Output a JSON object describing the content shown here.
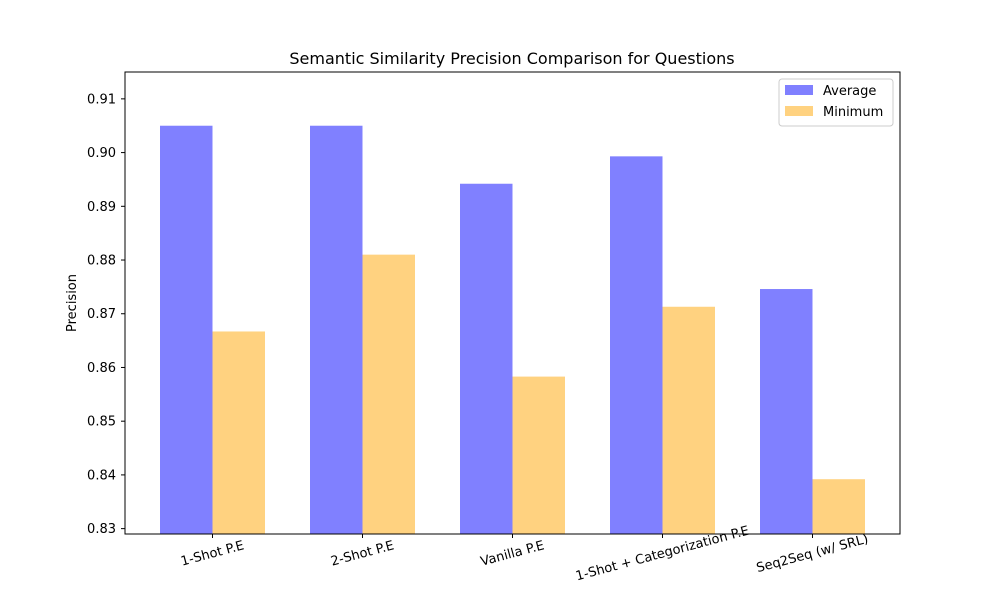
{
  "chart_data": {
    "type": "bar",
    "title": "Semantic Similarity Precision Comparison for Questions",
    "xlabel": "",
    "ylabel": "Precision",
    "ylim": [
      0.829,
      0.915
    ],
    "yticks": [
      "0.83",
      "0.84",
      "0.85",
      "0.86",
      "0.87",
      "0.88",
      "0.89",
      "0.90",
      "0.91"
    ],
    "categories": [
      "1-Shot P.E",
      "2-Shot P.E",
      "Vanilla P.E",
      "1-Shot + Categorization P.E",
      "Seq2Seq (w/ SRL)"
    ],
    "series": [
      {
        "name": "Average",
        "color": "#8080ff",
        "values": [
          0.905,
          0.905,
          0.8942,
          0.8993,
          0.8746
        ]
      },
      {
        "name": "Minimum",
        "color": "#ffd280",
        "values": [
          0.8667,
          0.881,
          0.8583,
          0.8713,
          0.8392
        ]
      }
    ],
    "grid": false,
    "legend_position": "top-right"
  }
}
